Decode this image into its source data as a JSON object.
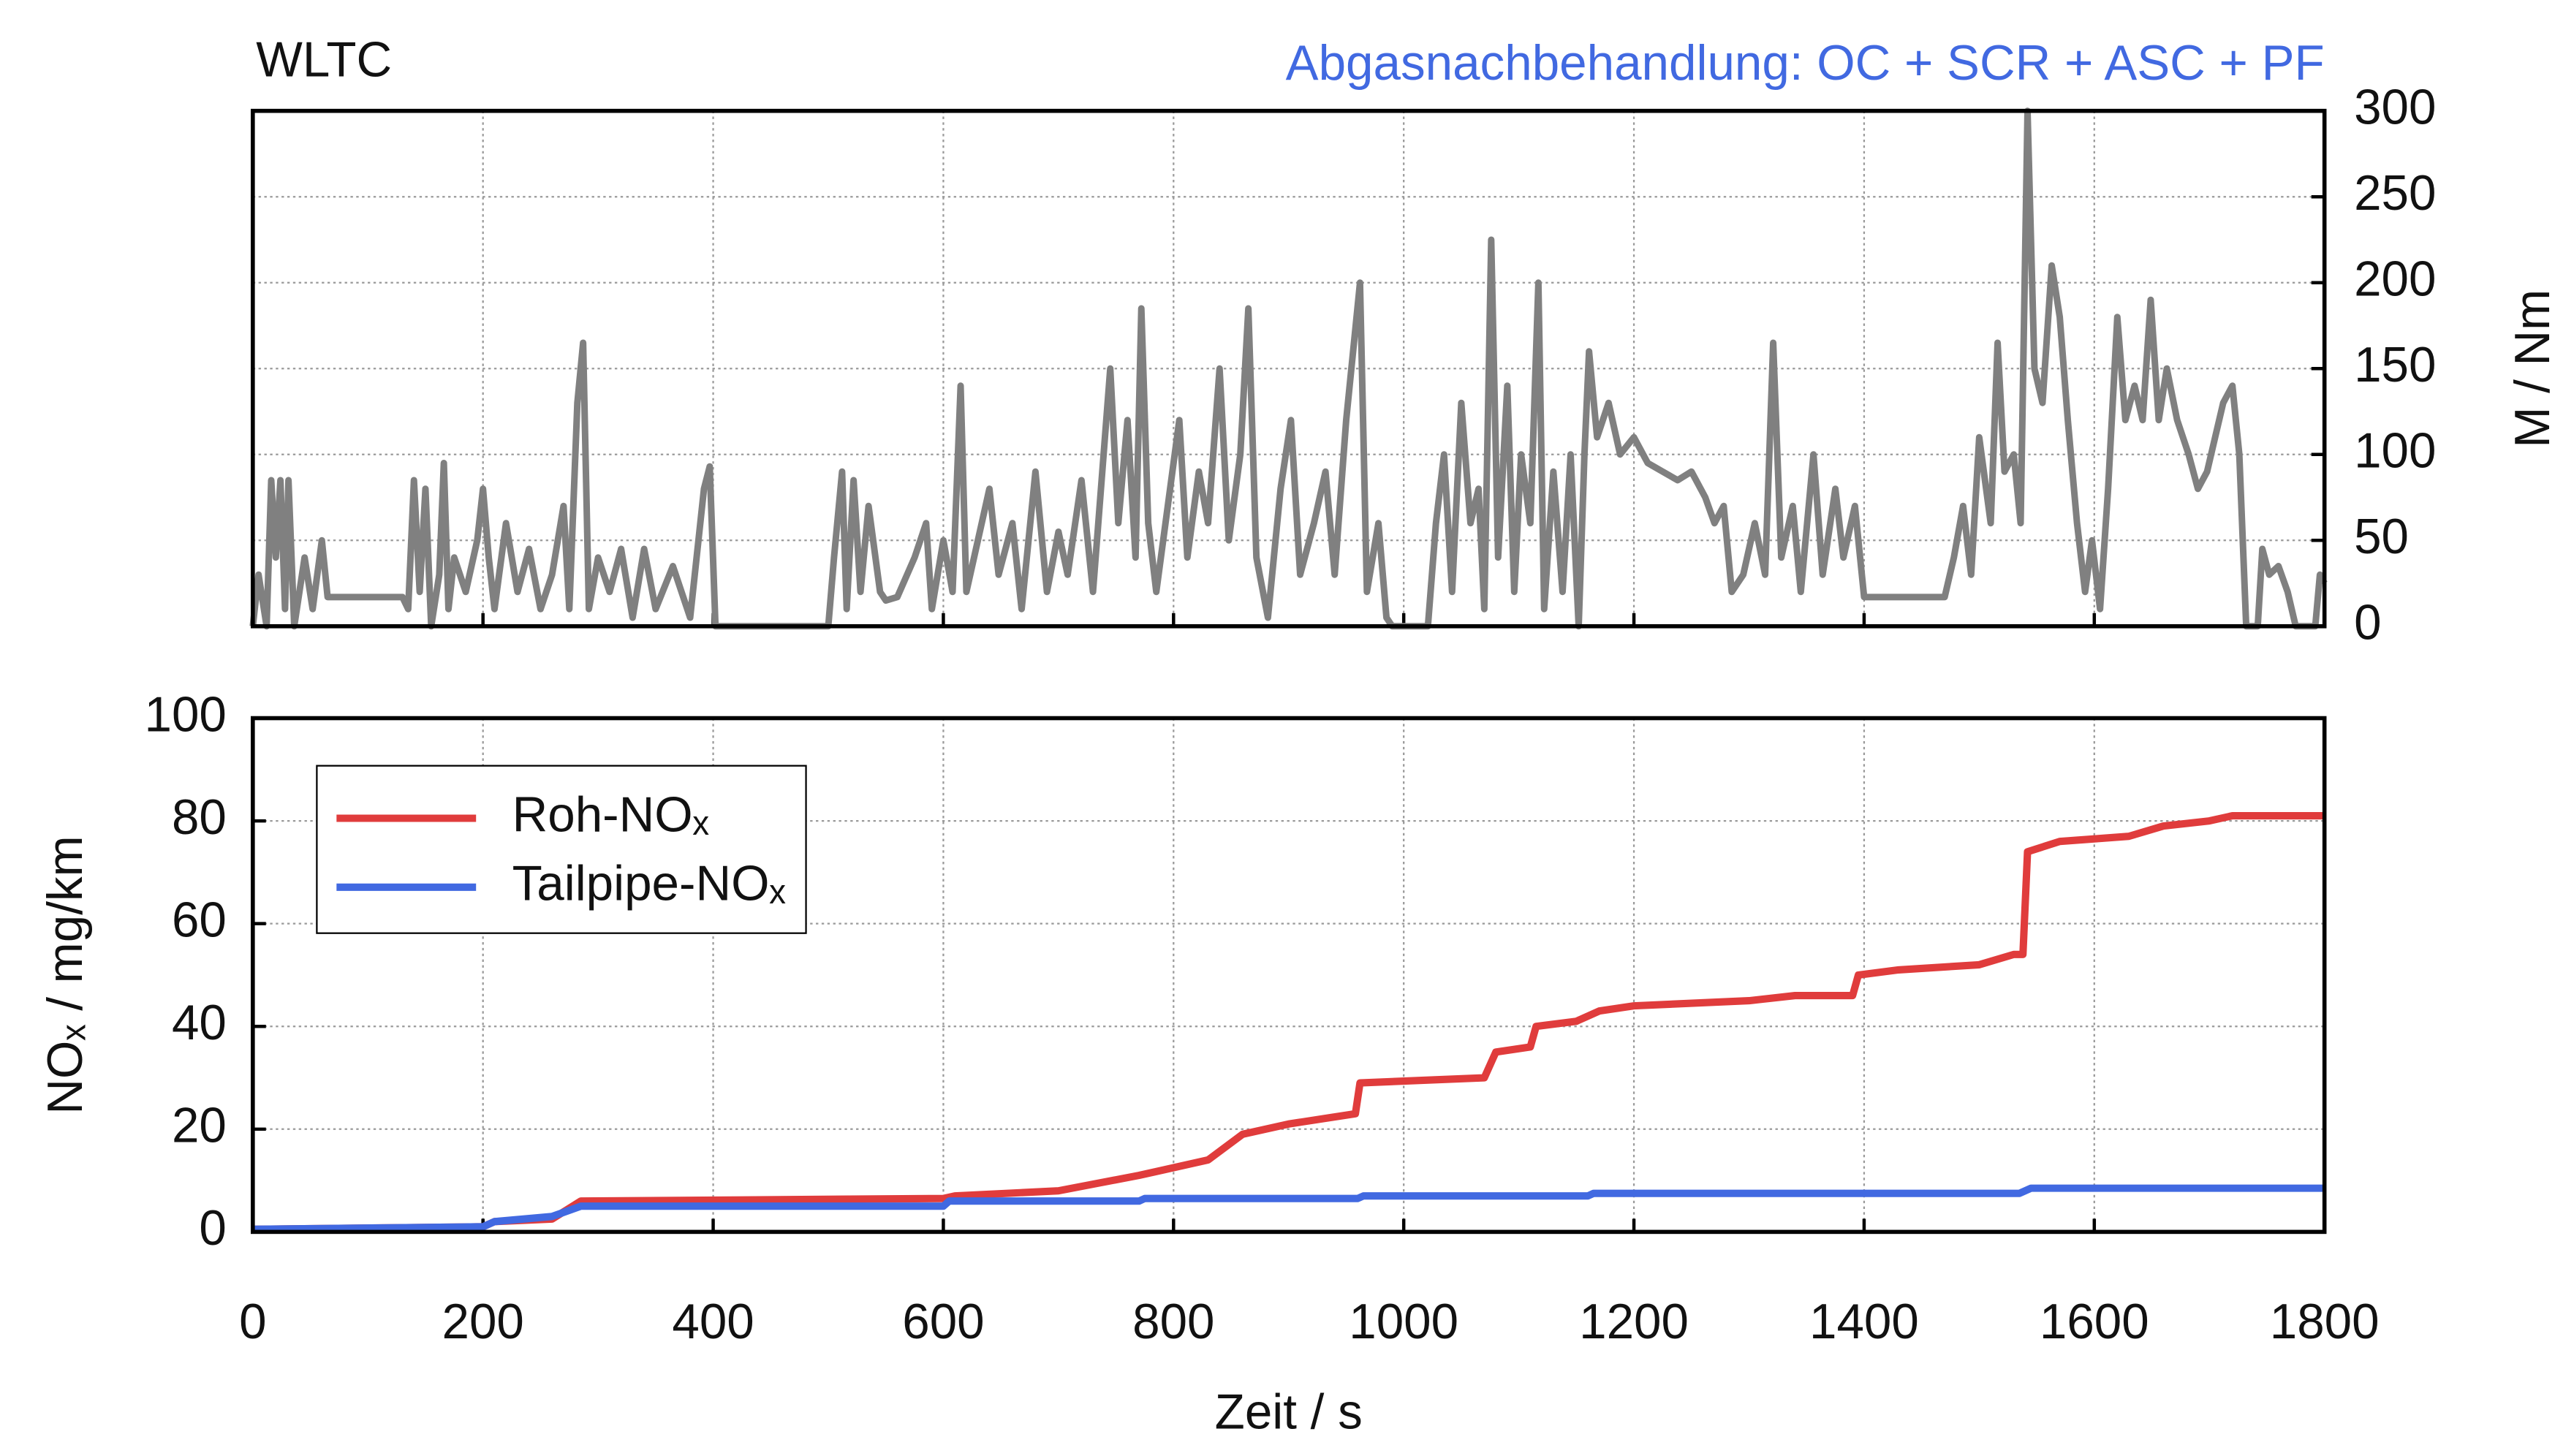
{
  "chart_data": [
    {
      "type": "line",
      "title": "WLTC",
      "subtitle": "Abgasnachbehandlung: OC + SCR + ASC + PF",
      "subtitle_color": "#4169e1",
      "y_label": "M / Nm",
      "y_axis_side": "right",
      "xlim": [
        0,
        1800
      ],
      "ylim": [
        0,
        300
      ],
      "yticks": [
        0,
        50,
        100,
        150,
        200,
        250,
        300
      ],
      "grid": true,
      "x": [
        0,
        5,
        12,
        16,
        20,
        24,
        28,
        31,
        36,
        45,
        52,
        60,
        65,
        130,
        135,
        140,
        145,
        150,
        155,
        162,
        166,
        170,
        175,
        185,
        195,
        200,
        205,
        210,
        220,
        230,
        240,
        250,
        260,
        270,
        275,
        282,
        287,
        292,
        300,
        310,
        320,
        330,
        340,
        350,
        365,
        380,
        392,
        397,
        402,
        408,
        500,
        505,
        512,
        516,
        522,
        528,
        535,
        545,
        550,
        560,
        575,
        585,
        590,
        600,
        608,
        615,
        620,
        630,
        640,
        648,
        660,
        668,
        680,
        690,
        700,
        708,
        720,
        730,
        745,
        752,
        760,
        767,
        772,
        778,
        785,
        795,
        805,
        812,
        822,
        830,
        840,
        848,
        858,
        865,
        872,
        882,
        893,
        902,
        910,
        922,
        932,
        940,
        950,
        962,
        968,
        978,
        985,
        990,
        1021,
        1028,
        1035,
        1042,
        1050,
        1058,
        1065,
        1070,
        1076,
        1082,
        1090,
        1096,
        1102,
        1110,
        1117,
        1122,
        1130,
        1138,
        1145,
        1152,
        1157,
        1161,
        1168,
        1178,
        1188,
        1200,
        1212,
        1225,
        1238,
        1250,
        1262,
        1270,
        1278,
        1285,
        1295,
        1305,
        1314,
        1321,
        1328,
        1338,
        1345,
        1356,
        1364,
        1375,
        1382,
        1392,
        1400,
        1470,
        1478,
        1486,
        1493,
        1500,
        1510,
        1516,
        1522,
        1530,
        1536,
        1542,
        1548,
        1555,
        1563,
        1570,
        1577,
        1585,
        1592,
        1598,
        1605,
        1612,
        1620,
        1627,
        1635,
        1642,
        1649,
        1656,
        1663,
        1672,
        1682,
        1690,
        1698,
        1705,
        1712,
        1720,
        1726,
        1732,
        1742,
        1746,
        1752,
        1760,
        1768,
        1775,
        1792,
        1796,
        1800
      ],
      "series": [
        {
          "color": "#808080",
          "values": [
            0,
            30,
            0,
            85,
            40,
            85,
            10,
            85,
            0,
            40,
            10,
            50,
            17,
            17,
            10,
            85,
            20,
            80,
            0,
            30,
            95,
            10,
            40,
            20,
            50,
            80,
            40,
            10,
            60,
            20,
            45,
            10,
            30,
            70,
            10,
            130,
            165,
            10,
            40,
            20,
            45,
            5,
            45,
            10,
            35,
            5,
            80,
            93,
            0,
            0,
            0,
            40,
            90,
            10,
            85,
            20,
            70,
            20,
            15,
            17,
            40,
            60,
            10,
            50,
            20,
            140,
            20,
            50,
            80,
            30,
            60,
            10,
            90,
            20,
            55,
            30,
            85,
            20,
            150,
            60,
            120,
            40,
            185,
            60,
            20,
            70,
            120,
            40,
            90,
            60,
            150,
            50,
            100,
            185,
            40,
            5,
            80,
            120,
            30,
            60,
            90,
            30,
            120,
            200,
            20,
            60,
            5,
            0,
            0,
            60,
            100,
            20,
            130,
            60,
            80,
            10,
            225,
            40,
            140,
            20,
            100,
            60,
            200,
            10,
            90,
            20,
            100,
            0,
            100,
            160,
            110,
            130,
            100,
            110,
            95,
            90,
            85,
            90,
            75,
            60,
            70,
            20,
            30,
            60,
            30,
            165,
            40,
            70,
            20,
            100,
            30,
            80,
            40,
            70,
            17,
            17,
            40,
            70,
            30,
            110,
            60,
            165,
            90,
            100,
            60,
            300,
            150,
            130,
            210,
            180,
            120,
            60,
            20,
            50,
            10,
            80,
            180,
            120,
            140,
            120,
            190,
            120,
            150,
            120,
            100,
            80,
            90,
            110,
            130,
            140,
            100,
            0,
            0,
            45,
            30,
            35,
            20,
            0,
            0,
            30,
            25
          ]
        }
      ]
    },
    {
      "type": "line",
      "x_label": "Zeit / s",
      "y_label": "NOₓ / mg/km",
      "xlim": [
        0,
        1800
      ],
      "ylim": [
        0,
        100
      ],
      "xticks": [
        0,
        200,
        400,
        600,
        800,
        1000,
        1200,
        1400,
        1600,
        1800
      ],
      "yticks": [
        0,
        20,
        40,
        60,
        80,
        100
      ],
      "grid": true,
      "legend": "upper left",
      "series": [
        {
          "name": "Roh-NOₓ",
          "color": "#e03c3c",
          "x": [
            0,
            200,
            210,
            260,
            285,
            600,
            610,
            700,
            770,
            790,
            830,
            860,
            900,
            958,
            962,
            1070,
            1080,
            1110,
            1115,
            1150,
            1170,
            1200,
            1300,
            1340,
            1390,
            1395,
            1430,
            1500,
            1530,
            1538,
            1542,
            1570,
            1630,
            1660,
            1700,
            1720,
            1800
          ],
          "values": [
            0.5,
            1,
            2,
            2.5,
            6,
            6.5,
            7,
            8,
            11,
            12,
            14,
            19,
            21,
            23,
            29,
            30,
            35,
            36,
            40,
            41,
            43,
            44,
            45,
            46,
            46,
            50,
            51,
            52,
            54,
            54,
            74,
            76,
            77,
            79,
            80,
            81,
            81
          ]
        },
        {
          "name": "Tailpipe-NOₓ",
          "color": "#4169e1",
          "x": [
            0,
            200,
            210,
            260,
            285,
            600,
            605,
            770,
            775,
            960,
            965,
            1160,
            1165,
            1535,
            1545,
            1800
          ],
          "values": [
            0.5,
            1,
            2,
            3,
            5,
            5,
            6,
            6,
            6.5,
            6.5,
            7,
            7,
            7.5,
            7.5,
            8.5,
            8.5
          ]
        }
      ]
    }
  ]
}
